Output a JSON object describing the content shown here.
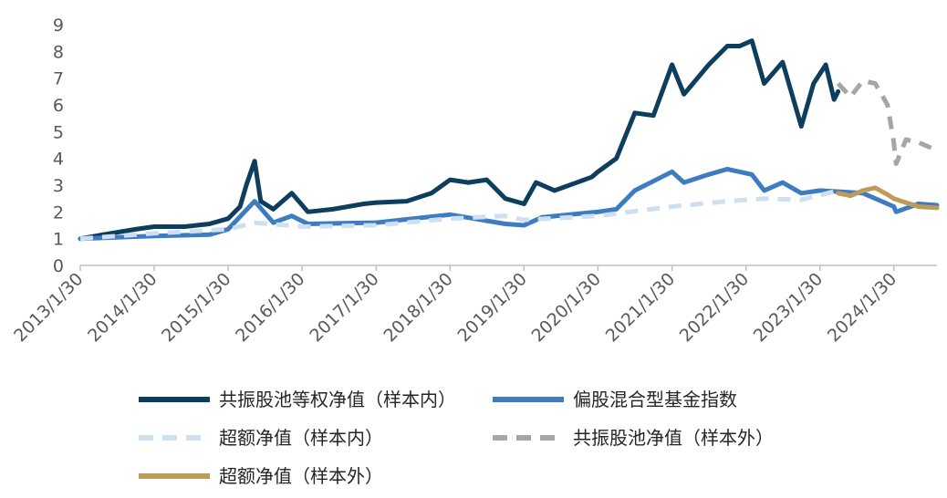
{
  "chart_data": {
    "type": "line",
    "title": "",
    "xlabel": "",
    "ylabel": "",
    "ylim": [
      0,
      9
    ],
    "yticks": [
      "0",
      "1",
      "2",
      "3",
      "4",
      "5",
      "6",
      "7",
      "8",
      "9"
    ],
    "xlim": [
      "2013/1/30",
      "2024/8/30"
    ],
    "xticks": [
      "2013/1/30",
      "2014/1/30",
      "2015/1/30",
      "2016/1/30",
      "2017/1/30",
      "2018/1/30",
      "2019/1/30",
      "2020/1/30",
      "2021/1/30",
      "2022/1/30",
      "2023/1/30",
      "2024/1/30"
    ],
    "grid": false,
    "legend_position": "bottom",
    "series": [
      {
        "name": "共振股池等权净值（样本内）",
        "color": "#0e3e5e",
        "style": "solid",
        "points": [
          [
            "2013/1/30",
            1.0
          ],
          [
            "2013/6/30",
            1.2
          ],
          [
            "2013/10/30",
            1.35
          ],
          [
            "2014/1/30",
            1.45
          ],
          [
            "2014/6/30",
            1.45
          ],
          [
            "2014/10/30",
            1.55
          ],
          [
            "2015/1/30",
            1.75
          ],
          [
            "2015/3/30",
            2.2
          ],
          [
            "2015/4/30",
            3.0
          ],
          [
            "2015/6/10",
            3.9
          ],
          [
            "2015/7/10",
            2.4
          ],
          [
            "2015/9/10",
            2.1
          ],
          [
            "2015/12/10",
            2.7
          ],
          [
            "2016/2/28",
            2.0
          ],
          [
            "2016/6/30",
            2.1
          ],
          [
            "2016/11/30",
            2.3
          ],
          [
            "2017/1/30",
            2.35
          ],
          [
            "2017/6/30",
            2.4
          ],
          [
            "2017/10/30",
            2.7
          ],
          [
            "2018/1/30",
            3.2
          ],
          [
            "2018/4/30",
            3.1
          ],
          [
            "2018/7/30",
            3.2
          ],
          [
            "2018/10/30",
            2.5
          ],
          [
            "2019/1/30",
            2.3
          ],
          [
            "2019/3/30",
            3.1
          ],
          [
            "2019/6/30",
            2.8
          ],
          [
            "2019/12/30",
            3.3
          ],
          [
            "2020/1/30",
            3.5
          ],
          [
            "2020/4/30",
            4.0
          ],
          [
            "2020/7/30",
            5.7
          ],
          [
            "2020/10/30",
            5.6
          ],
          [
            "2021/1/30",
            7.5
          ],
          [
            "2021/3/30",
            6.4
          ],
          [
            "2021/7/30",
            7.5
          ],
          [
            "2021/10/30",
            8.2
          ],
          [
            "2021/12/30",
            8.2
          ],
          [
            "2022/2/28",
            8.4
          ],
          [
            "2022/4/30",
            6.8
          ],
          [
            "2022/7/30",
            7.6
          ],
          [
            "2022/10/30",
            5.2
          ],
          [
            "2022/12/30",
            6.8
          ],
          [
            "2023/2/28",
            7.5
          ],
          [
            "2023/4/10",
            6.2
          ],
          [
            "2023/4/30",
            6.5
          ]
        ]
      },
      {
        "name": "偏股混合型基金指数",
        "color": "#3e7cc1",
        "style": "solid",
        "points": [
          [
            "2013/1/30",
            1.0
          ],
          [
            "2014/1/30",
            1.1
          ],
          [
            "2014/10/30",
            1.15
          ],
          [
            "2015/1/30",
            1.35
          ],
          [
            "2015/6/10",
            2.4
          ],
          [
            "2015/9/10",
            1.6
          ],
          [
            "2015/12/10",
            1.85
          ],
          [
            "2016/2/28",
            1.55
          ],
          [
            "2017/1/30",
            1.6
          ],
          [
            "2018/1/30",
            1.9
          ],
          [
            "2018/10/30",
            1.55
          ],
          [
            "2019/1/30",
            1.5
          ],
          [
            "2019/4/30",
            1.8
          ],
          [
            "2020/1/30",
            2.0
          ],
          [
            "2020/4/30",
            2.1
          ],
          [
            "2020/7/30",
            2.8
          ],
          [
            "2021/1/30",
            3.5
          ],
          [
            "2021/3/30",
            3.1
          ],
          [
            "2021/7/30",
            3.4
          ],
          [
            "2021/10/30",
            3.6
          ],
          [
            "2022/2/28",
            3.4
          ],
          [
            "2022/4/30",
            2.8
          ],
          [
            "2022/7/30",
            3.1
          ],
          [
            "2022/10/30",
            2.7
          ],
          [
            "2023/1/30",
            2.8
          ],
          [
            "2023/8/30",
            2.7
          ],
          [
            "2024/1/30",
            2.2
          ],
          [
            "2024/2/10",
            2.0
          ],
          [
            "2024/5/30",
            2.3
          ],
          [
            "2024/8/30",
            2.25
          ]
        ]
      },
      {
        "name": "超额净值（样本内）",
        "color": "#cddff0",
        "style": "dashed",
        "points": [
          [
            "2013/1/30",
            1.0
          ],
          [
            "2014/1/30",
            1.2
          ],
          [
            "2015/1/30",
            1.35
          ],
          [
            "2015/6/10",
            1.6
          ],
          [
            "2016/1/30",
            1.45
          ],
          [
            "2017/1/30",
            1.5
          ],
          [
            "2018/1/30",
            1.75
          ],
          [
            "2018/10/30",
            1.85
          ],
          [
            "2019/1/30",
            1.7
          ],
          [
            "2020/1/30",
            1.85
          ],
          [
            "2021/1/30",
            2.2
          ],
          [
            "2021/10/30",
            2.4
          ],
          [
            "2022/4/30",
            2.5
          ],
          [
            "2022/10/30",
            2.45
          ],
          [
            "2023/4/30",
            2.8
          ]
        ]
      },
      {
        "name": "共振股池净值（样本外）",
        "color": "#a6a6a6",
        "style": "dashed",
        "points": [
          [
            "2023/4/30",
            6.8
          ],
          [
            "2023/6/30",
            6.3
          ],
          [
            "2023/8/30",
            6.9
          ],
          [
            "2023/10/30",
            6.8
          ],
          [
            "2023/12/30",
            6.0
          ],
          [
            "2024/1/30",
            4.6
          ],
          [
            "2024/2/10",
            3.8
          ],
          [
            "2024/3/30",
            4.7
          ],
          [
            "2024/5/30",
            4.6
          ],
          [
            "2024/8/30",
            4.3
          ]
        ]
      },
      {
        "name": "超额净值（样本外）",
        "color": "#bf9b5a",
        "style": "solid",
        "points": [
          [
            "2023/4/30",
            2.7
          ],
          [
            "2023/6/30",
            2.6
          ],
          [
            "2023/8/30",
            2.8
          ],
          [
            "2023/10/30",
            2.9
          ],
          [
            "2023/12/30",
            2.65
          ],
          [
            "2024/1/30",
            2.5
          ],
          [
            "2024/3/30",
            2.35
          ],
          [
            "2024/5/30",
            2.2
          ],
          [
            "2024/8/30",
            2.15
          ]
        ]
      }
    ]
  }
}
